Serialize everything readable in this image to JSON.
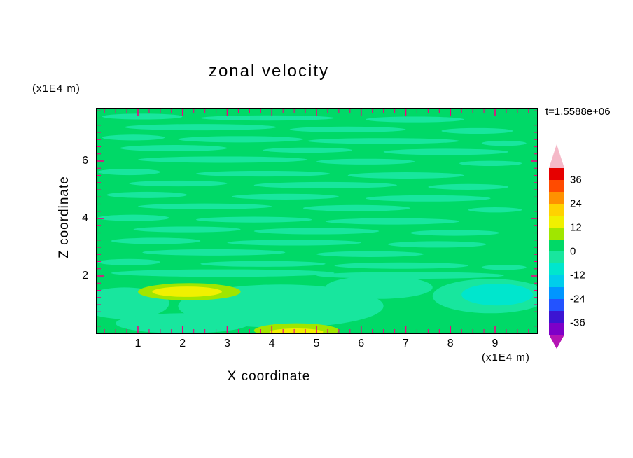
{
  "title": "zonal velocity",
  "timestamp": "t=1.5588e+06",
  "axes": {
    "x_label": "X coordinate",
    "x_unit": "(x1E4 m)",
    "y_label": "Z coordinate",
    "y_unit": "(x1E4 m)",
    "x_major_ticks": [
      1,
      2,
      3,
      4,
      5,
      6,
      7,
      8,
      9
    ],
    "y_major_ticks": [
      2,
      4,
      6
    ],
    "minor_tick_step": 0.25,
    "tick_color": "#f00082",
    "frame_color": "#000000"
  },
  "colorbar": {
    "labels": [
      "36",
      "24",
      "12",
      "0",
      "-12",
      "-24",
      "-36"
    ],
    "label_values": [
      36,
      24,
      12,
      0,
      -12,
      -24,
      -36
    ],
    "level_min": -42,
    "level_max": 42,
    "level_step": 6,
    "segment_colors_top_to_bottom": [
      "#e60000",
      "#ff4b00",
      "#ff9100",
      "#ffd200",
      "#f0f000",
      "#a0e600",
      "#00d967",
      "#18e69e",
      "#00e6cd",
      "#00cdeb",
      "#0096ff",
      "#2353ff",
      "#3c14d2",
      "#7d00c8"
    ],
    "arrow_top_color": "#f5b9c8",
    "arrow_bottom_color": "#b414b4"
  },
  "chart_data": {
    "type": "heatmap",
    "title": "zonal velocity",
    "xlabel": "X coordinate (x1E4 m)",
    "ylabel": "Z coordinate (x1E4 m)",
    "time_annotation": "t=1.5588e+06",
    "x_range": [
      0,
      9.96
    ],
    "z_range": [
      0,
      7.83
    ],
    "value_levels": [
      -42,
      -36,
      -30,
      -24,
      -18,
      -12,
      -6,
      0,
      6,
      12,
      18,
      24,
      30,
      36,
      42
    ],
    "field_summary": "Zonal velocity mostly between -6 and +6 arranged in thin horizontal streaks; local maxima 12..18 near (x=2.1,z=1.45) and (x=4.55,z=0.05); local minimum -12..-6 near (x=9.05,z=1.35).",
    "background": {
      "level": "0..6",
      "color": "#00d967"
    },
    "features": [
      {
        "name": "negative-streaks",
        "level": "-6..0",
        "color": "#18e69e",
        "ellipses": [
          [
            1.1,
            7.55,
            0.9,
            0.1
          ],
          [
            3.9,
            7.5,
            1.5,
            0.09
          ],
          [
            7.2,
            7.45,
            1.1,
            0.1
          ],
          [
            2.4,
            7.18,
            1.7,
            0.11
          ],
          [
            5.7,
            7.1,
            1.3,
            0.1
          ],
          [
            8.6,
            7.05,
            0.8,
            0.1
          ],
          [
            0.9,
            6.82,
            0.7,
            0.1
          ],
          [
            3.3,
            6.76,
            1.4,
            0.11
          ],
          [
            6.5,
            6.7,
            1.7,
            0.1
          ],
          [
            9.2,
            6.62,
            0.5,
            0.09
          ],
          [
            1.8,
            6.45,
            1.2,
            0.11
          ],
          [
            4.8,
            6.38,
            1.0,
            0.09
          ],
          [
            7.9,
            6.32,
            1.4,
            0.11
          ],
          [
            2.9,
            6.05,
            1.9,
            0.11
          ],
          [
            6.1,
            5.98,
            1.1,
            0.1
          ],
          [
            8.9,
            5.92,
            0.7,
            0.09
          ],
          [
            0.8,
            5.62,
            0.7,
            0.11
          ],
          [
            3.8,
            5.56,
            1.5,
            0.1
          ],
          [
            7.0,
            5.5,
            1.3,
            0.11
          ],
          [
            1.9,
            5.22,
            1.1,
            0.1
          ],
          [
            5.2,
            5.16,
            1.6,
            0.11
          ],
          [
            8.4,
            5.1,
            0.9,
            0.1
          ],
          [
            1.2,
            4.82,
            0.9,
            0.11
          ],
          [
            4.3,
            4.76,
            1.2,
            0.1
          ],
          [
            7.5,
            4.7,
            1.4,
            0.11
          ],
          [
            2.5,
            4.42,
            1.5,
            0.1
          ],
          [
            5.9,
            4.36,
            1.2,
            0.11
          ],
          [
            9.0,
            4.3,
            0.6,
            0.09
          ],
          [
            0.9,
            4.02,
            0.8,
            0.11
          ],
          [
            3.6,
            3.96,
            1.3,
            0.1
          ],
          [
            6.7,
            3.9,
            1.5,
            0.11
          ],
          [
            2.1,
            3.62,
            1.2,
            0.1
          ],
          [
            5.0,
            3.56,
            1.4,
            0.11
          ],
          [
            8.1,
            3.5,
            1.0,
            0.1
          ],
          [
            1.4,
            3.22,
            1.0,
            0.11
          ],
          [
            4.5,
            3.16,
            1.5,
            0.1
          ],
          [
            7.7,
            3.1,
            1.1,
            0.11
          ],
          [
            2.7,
            2.82,
            1.6,
            0.11
          ],
          [
            6.2,
            2.76,
            1.2,
            0.1
          ],
          [
            0.8,
            2.48,
            0.7,
            0.11
          ],
          [
            3.8,
            2.42,
            1.4,
            0.1
          ],
          [
            6.9,
            2.36,
            1.5,
            0.11
          ],
          [
            9.2,
            2.3,
            0.5,
            0.09
          ],
          [
            2.9,
            2.1,
            2.5,
            0.13
          ],
          [
            7.1,
            2.02,
            2.1,
            0.12
          ],
          [
            4.2,
            0.95,
            2.3,
            0.75
          ],
          [
            8.9,
            1.3,
            1.3,
            0.6
          ],
          [
            0.7,
            1.05,
            1.0,
            0.55
          ],
          [
            6.4,
            1.6,
            1.2,
            0.4
          ],
          [
            2.0,
            0.35,
            1.5,
            0.35
          ]
        ]
      },
      {
        "name": "positive-rims",
        "level": "6..12",
        "color": "#a0e600",
        "ellipses": [
          [
            2.15,
            1.45,
            1.15,
            0.3
          ],
          [
            4.55,
            0.1,
            0.95,
            0.25
          ]
        ]
      },
      {
        "name": "positive-maxima",
        "level": "12..18",
        "color": "#f0f000",
        "ellipses": [
          [
            2.1,
            1.45,
            0.78,
            0.18
          ],
          [
            4.55,
            0.05,
            0.6,
            0.12
          ]
        ]
      },
      {
        "name": "negative-minimum",
        "level": "-12..-6",
        "color": "#00e6cd",
        "ellipses": [
          [
            9.05,
            1.35,
            0.8,
            0.38
          ]
        ]
      }
    ]
  }
}
